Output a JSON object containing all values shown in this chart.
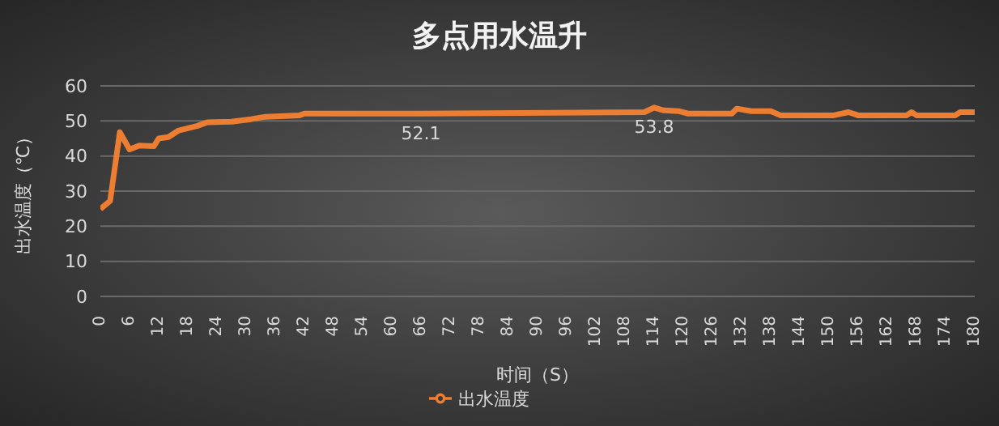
{
  "chart_data": {
    "type": "line",
    "title": "多点用水温升",
    "xlabel": "时间（S）",
    "ylabel": "出水温度（℃）",
    "annotations": [
      {
        "text": "52.1",
        "x": 66,
        "y": 52.1
      },
      {
        "text": "53.8",
        "x": 114,
        "y": 53.8
      }
    ],
    "series": [
      {
        "name": "出水温度",
        "color": "#ed7d31",
        "x": [
          0,
          2,
          4,
          6,
          8,
          11,
          12,
          14,
          16,
          20,
          22,
          27,
          31,
          34,
          41,
          42,
          66,
          112,
          114,
          116,
          119,
          121,
          130,
          131,
          134,
          138,
          140,
          151,
          154,
          156,
          166,
          167,
          168,
          176,
          177,
          180
        ],
        "values": [
          24.9,
          27.2,
          46.8,
          41.9,
          43,
          42.8,
          45,
          45.4,
          47.2,
          48.6,
          49.6,
          49.8,
          50.5,
          51.2,
          51.6,
          52.1,
          52.1,
          52.5,
          53.8,
          53,
          52.8,
          52.1,
          52.1,
          53.5,
          52.8,
          52.8,
          51.6,
          51.6,
          52.5,
          51.6,
          51.6,
          52.5,
          51.6,
          51.6,
          52.5,
          52.5
        ]
      }
    ],
    "xlim": [
      0,
      180
    ],
    "xticks": [
      0,
      6,
      12,
      18,
      24,
      30,
      36,
      42,
      48,
      54,
      60,
      66,
      72,
      78,
      84,
      90,
      96,
      102,
      108,
      114,
      120,
      126,
      132,
      138,
      144,
      150,
      156,
      162,
      168,
      174,
      180
    ],
    "ylim": [
      0,
      60
    ],
    "yticks": [
      0,
      10,
      20,
      30,
      40,
      50,
      60
    ],
    "grid": "y",
    "legend": "bottom",
    "marker": "none",
    "line_style": "solid"
  }
}
